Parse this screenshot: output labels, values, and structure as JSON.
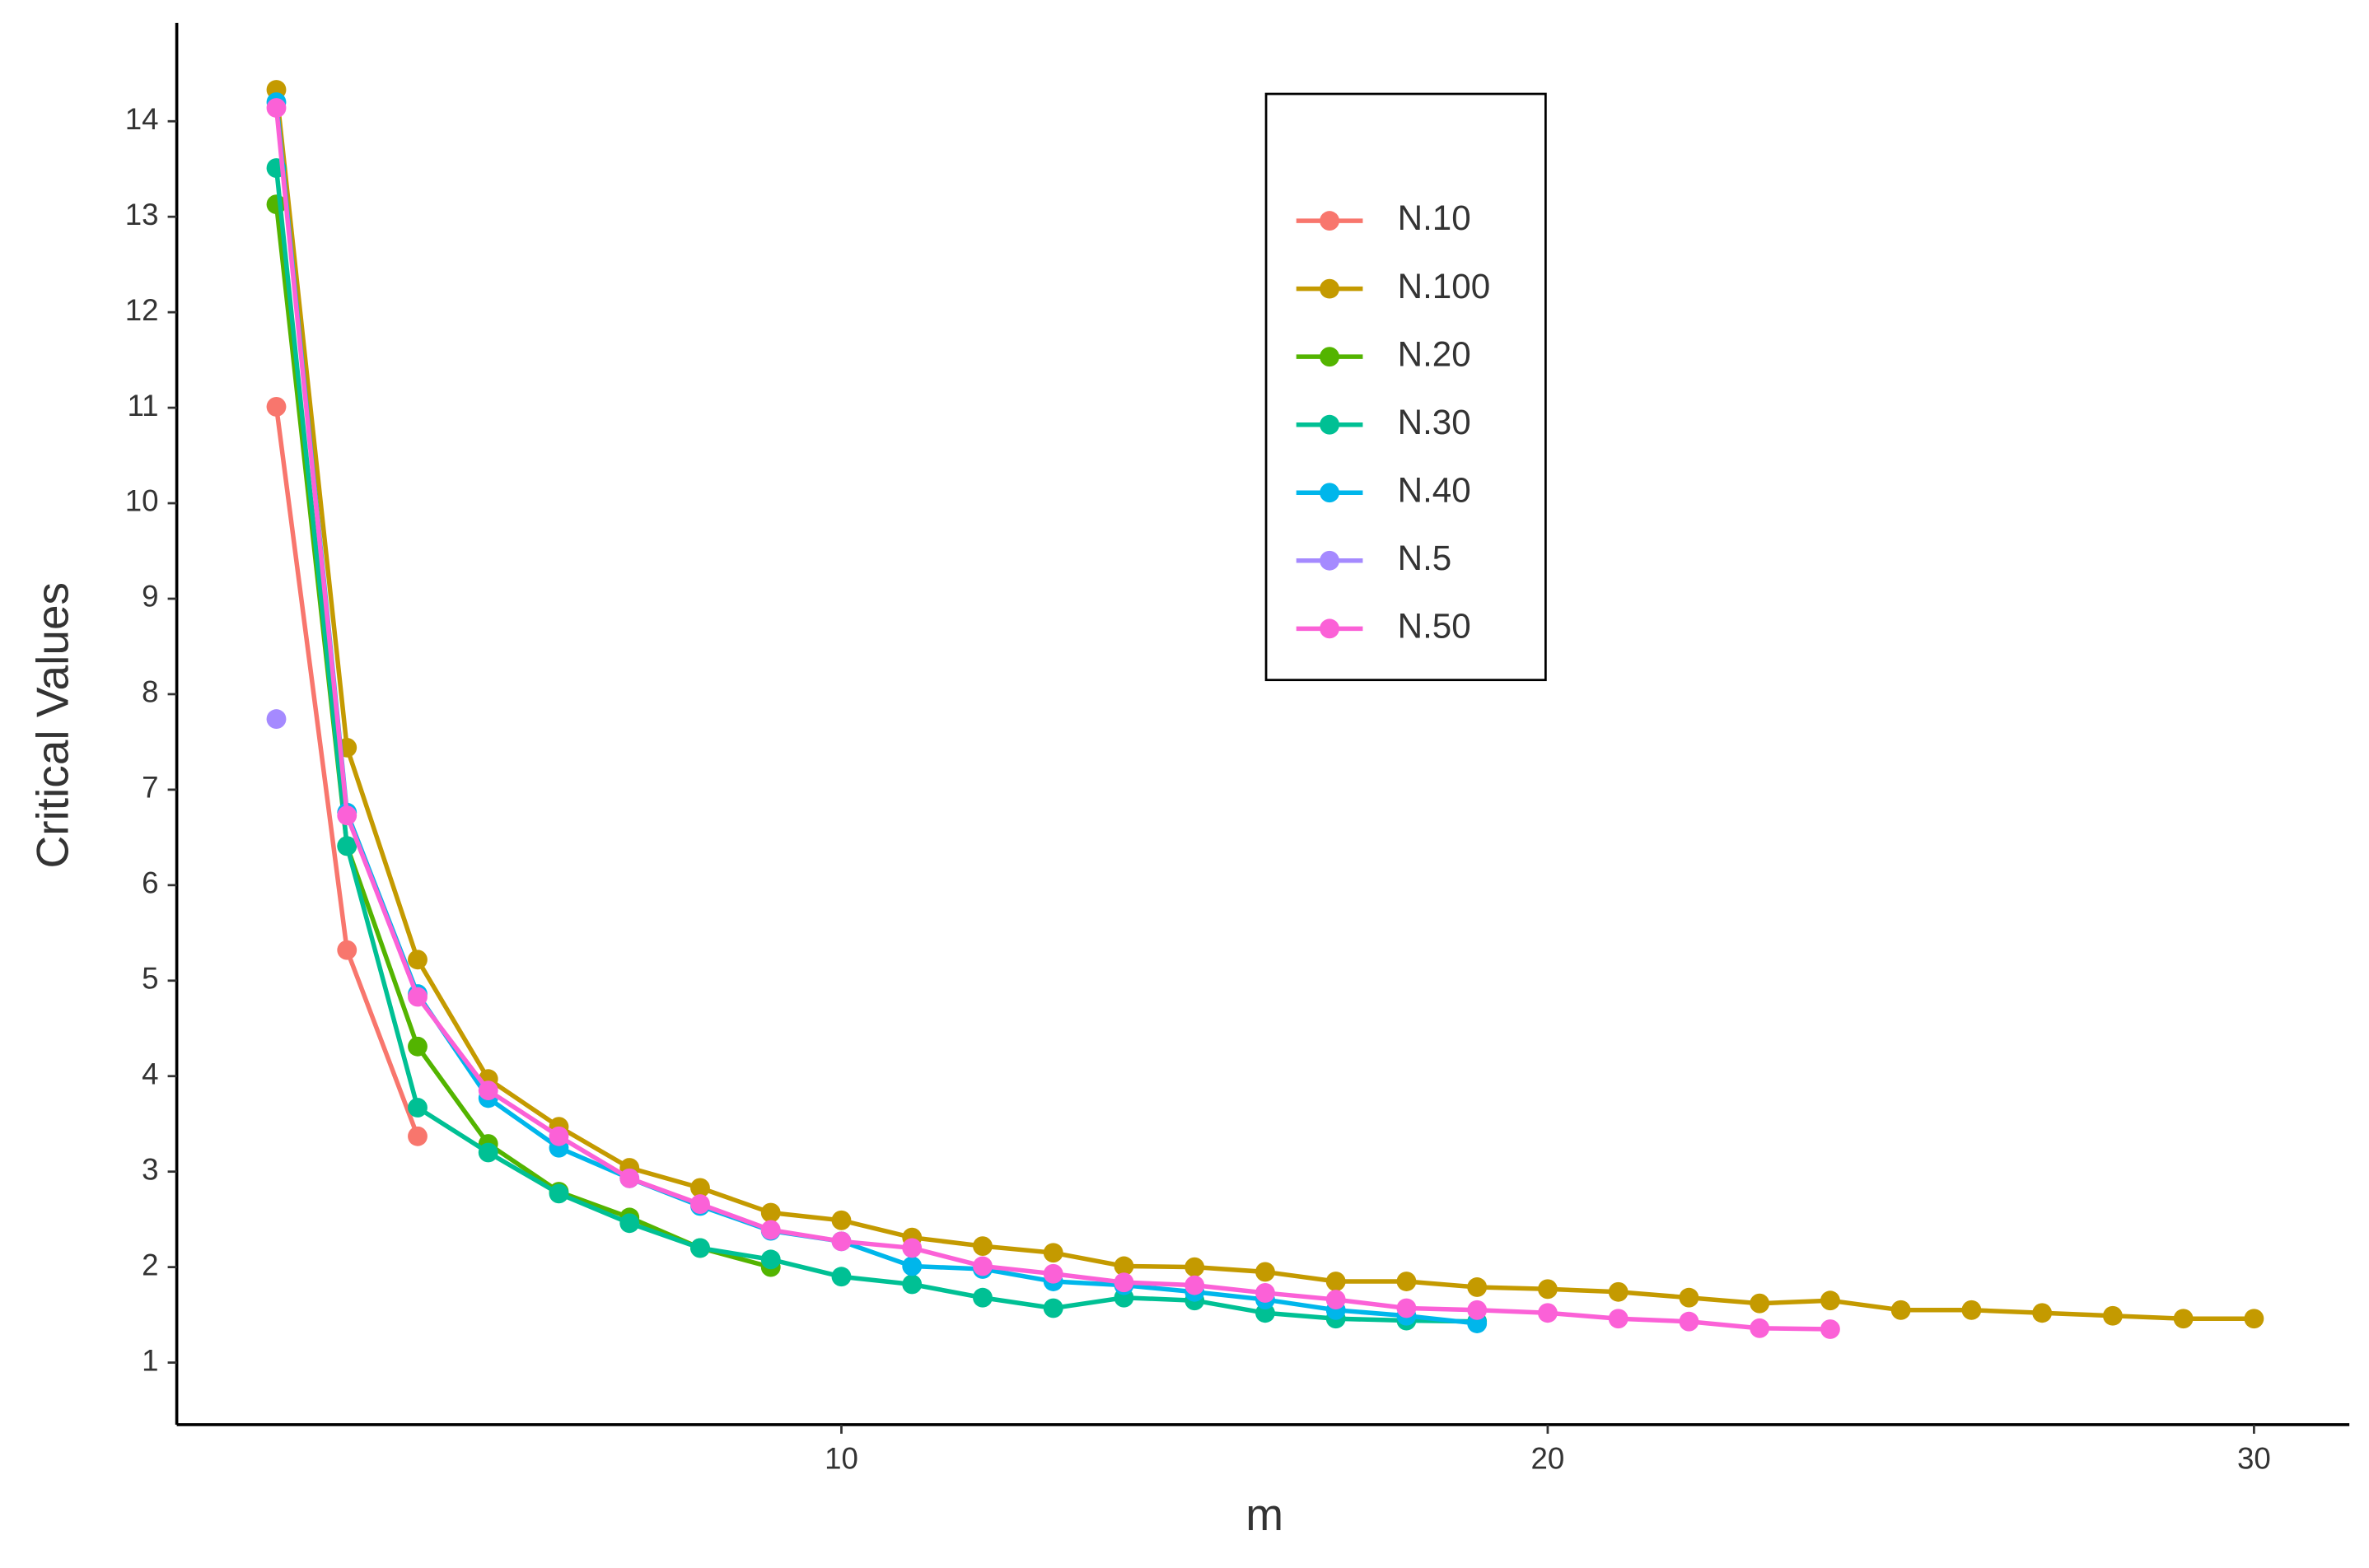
{
  "chart_data": {
    "type": "line",
    "x_label": "m",
    "y_label": "Critical Values",
    "xlim": [
      0.59,
      31.35
    ],
    "ylim": [
      0.35,
      15.03
    ],
    "xticks": [
      10,
      20,
      30
    ],
    "yticks": [
      1,
      2,
      3,
      4,
      5,
      6,
      7,
      8,
      9,
      10,
      11,
      12,
      13,
      14
    ],
    "grid": false,
    "legend": "top-center",
    "series": [
      {
        "name": "N.10",
        "color": "#F8766D",
        "x": [
          2,
          3,
          4
        ],
        "values": [
          11.01,
          5.32,
          3.37
        ]
      },
      {
        "name": "N.100",
        "color": "#C49A00",
        "x": [
          2,
          3,
          4,
          5,
          6,
          7,
          8,
          9,
          10,
          11,
          12,
          13,
          14,
          15,
          16,
          17,
          18,
          19,
          20,
          21,
          22,
          23,
          24,
          25,
          26,
          27,
          28,
          29,
          30
        ],
        "values": [
          14.33,
          7.44,
          5.22,
          3.97,
          3.47,
          3.04,
          2.83,
          2.57,
          2.49,
          2.31,
          2.22,
          2.15,
          2.01,
          2.0,
          1.95,
          1.85,
          1.85,
          1.79,
          1.77,
          1.74,
          1.68,
          1.62,
          1.65,
          1.55,
          1.55,
          1.52,
          1.49,
          1.46,
          1.46
        ]
      },
      {
        "name": "N.20",
        "color": "#53B400",
        "x": [
          2,
          3,
          4,
          5,
          6,
          7,
          8,
          9
        ],
        "values": [
          13.13,
          6.41,
          4.31,
          3.29,
          2.79,
          2.52,
          2.2,
          2.0
        ]
      },
      {
        "name": "N.30",
        "color": "#00C094",
        "x": [
          2,
          3,
          4,
          5,
          6,
          7,
          8,
          9,
          10,
          11,
          12,
          13,
          14,
          15,
          16,
          17,
          18,
          19
        ],
        "values": [
          13.51,
          6.41,
          3.67,
          3.2,
          2.77,
          2.46,
          2.2,
          2.08,
          1.9,
          1.82,
          1.68,
          1.57,
          1.68,
          1.65,
          1.52,
          1.46,
          1.44,
          1.43
        ]
      },
      {
        "name": "N.40",
        "color": "#00B6EB",
        "x": [
          2,
          3,
          4,
          5,
          6,
          7,
          8,
          9,
          10,
          11,
          12,
          13,
          14,
          15,
          16,
          17,
          18,
          19
        ],
        "values": [
          14.2,
          6.76,
          4.86,
          3.77,
          3.25,
          2.93,
          2.64,
          2.38,
          2.27,
          2.01,
          1.98,
          1.85,
          1.81,
          1.74,
          1.66,
          1.55,
          1.49,
          1.41
        ]
      },
      {
        "name": "N.5",
        "color": "#A58AFF",
        "x": [
          2
        ],
        "values": [
          7.74
        ]
      },
      {
        "name": "N.50",
        "color": "#FB61D7",
        "x": [
          2,
          3,
          4,
          5,
          6,
          7,
          8,
          9,
          10,
          11,
          12,
          13,
          14,
          15,
          16,
          17,
          18,
          19,
          20,
          21,
          22,
          23,
          24
        ],
        "values": [
          14.14,
          6.73,
          4.83,
          3.85,
          3.37,
          2.93,
          2.66,
          2.39,
          2.27,
          2.2,
          2.01,
          1.93,
          1.84,
          1.81,
          1.73,
          1.66,
          1.57,
          1.55,
          1.52,
          1.46,
          1.43,
          1.36,
          1.35
        ]
      }
    ]
  }
}
